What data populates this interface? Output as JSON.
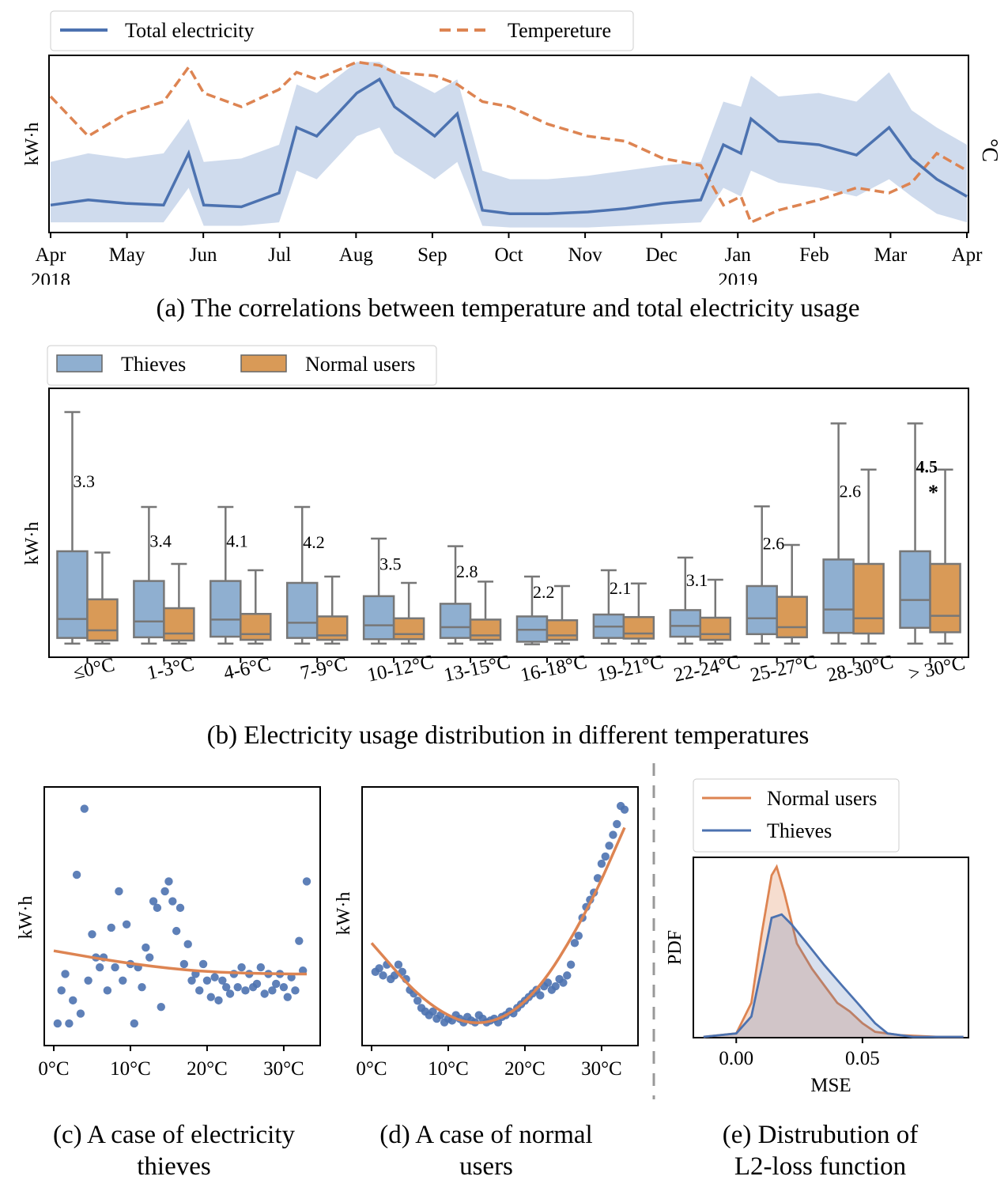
{
  "panel_a": {
    "legend": [
      "Total electricity",
      "Tempereture"
    ],
    "ylabel_left": "kW·h",
    "ylabel_right": "°C",
    "x_ticks": [
      {
        "label": "Apr",
        "sub": "2018"
      },
      {
        "label": "May",
        "sub": ""
      },
      {
        "label": "Jun",
        "sub": ""
      },
      {
        "label": "Jul",
        "sub": ""
      },
      {
        "label": "Aug",
        "sub": ""
      },
      {
        "label": "Sep",
        "sub": ""
      },
      {
        "label": "Oct",
        "sub": ""
      },
      {
        "label": "Nov",
        "sub": ""
      },
      {
        "label": "Dec",
        "sub": ""
      },
      {
        "label": "Jan",
        "sub": "2019"
      },
      {
        "label": "Feb",
        "sub": ""
      },
      {
        "label": "Mar",
        "sub": ""
      },
      {
        "label": "Apr",
        "sub": ""
      }
    ],
    "caption": "(a) The correlations between temperature and total electricity usage"
  },
  "panel_b": {
    "legend": [
      "Thieves",
      "Normal users"
    ],
    "ylabel": "kW·h",
    "caption": "(b) Electricity usage distribution in different temperatures"
  },
  "panel_c": {
    "ylabel": "kW·h",
    "x_ticks": [
      "0°C",
      "10°C",
      "20°C",
      "30°C"
    ],
    "caption_line1": "(c) A case of electricity",
    "caption_line2": "thieves"
  },
  "panel_d": {
    "ylabel": "kW·h",
    "x_ticks": [
      "0°C",
      "10°C",
      "20°C",
      "30°C"
    ],
    "caption_line1": "(d) A case of normal",
    "caption_line2": "users"
  },
  "panel_e": {
    "legend": [
      "Normal users",
      "Thieves"
    ],
    "ylabel": "PDF",
    "xlabel": "MSE",
    "x_ticks": [
      "0.00",
      "0.05"
    ],
    "caption_line1": "(e) Distrubution of",
    "caption_line2": "L2-loss function"
  },
  "chart_data": [
    {
      "type": "line",
      "x_dates": [
        "2018-04-01",
        "2018-04-16",
        "2018-05-01",
        "2018-05-16",
        "2018-05-26",
        "2018-06-01",
        "2018-06-16",
        "2018-07-01",
        "2018-07-08",
        "2018-07-16",
        "2018-08-01",
        "2018-08-10",
        "2018-08-16",
        "2018-09-01",
        "2018-09-10",
        "2018-09-20",
        "2018-10-01",
        "2018-10-16",
        "2018-11-01",
        "2018-11-16",
        "2018-12-01",
        "2018-12-16",
        "2018-12-25",
        "2019-01-01",
        "2019-01-05",
        "2019-01-16",
        "2019-02-01",
        "2019-02-16",
        "2019-03-01",
        "2019-03-10",
        "2019-03-20",
        "2019-04-01"
      ],
      "series": [
        {
          "name": "Total electricity",
          "axis": "left",
          "values": [
            0.15,
            0.18,
            0.16,
            0.15,
            0.45,
            0.15,
            0.14,
            0.22,
            0.6,
            0.55,
            0.8,
            0.88,
            0.72,
            0.55,
            0.68,
            0.12,
            0.1,
            0.1,
            0.11,
            0.13,
            0.16,
            0.18,
            0.5,
            0.45,
            0.65,
            0.52,
            0.5,
            0.44,
            0.6,
            0.42,
            0.3,
            0.2
          ],
          "band_upper": [
            0.4,
            0.45,
            0.42,
            0.45,
            0.65,
            0.4,
            0.42,
            0.5,
            0.85,
            0.8,
            0.98,
            0.98,
            0.92,
            0.8,
            0.88,
            0.35,
            0.3,
            0.3,
            0.32,
            0.35,
            0.38,
            0.4,
            0.75,
            0.72,
            0.9,
            0.78,
            0.8,
            0.75,
            0.92,
            0.7,
            0.6,
            0.5
          ],
          "band_lower": [
            0.05,
            0.05,
            0.05,
            0.05,
            0.25,
            0.03,
            0.03,
            0.05,
            0.35,
            0.3,
            0.55,
            0.6,
            0.45,
            0.3,
            0.4,
            0.03,
            0.02,
            0.02,
            0.02,
            0.03,
            0.04,
            0.05,
            0.25,
            0.2,
            0.35,
            0.28,
            0.25,
            0.2,
            0.3,
            0.2,
            0.1,
            0.05
          ]
        },
        {
          "name": "Tempereture",
          "axis": "right",
          "values": [
            0.78,
            0.55,
            0.68,
            0.75,
            0.95,
            0.8,
            0.72,
            0.82,
            0.92,
            0.88,
            0.98,
            0.96,
            0.92,
            0.9,
            0.85,
            0.75,
            0.72,
            0.62,
            0.55,
            0.52,
            0.42,
            0.38,
            0.15,
            0.2,
            0.05,
            0.12,
            0.18,
            0.25,
            0.22,
            0.28,
            0.45,
            0.35
          ]
        }
      ],
      "ylim": [
        0,
        1
      ]
    },
    {
      "type": "box",
      "categories": [
        "≤0°C",
        "1-3°C",
        "4-6°C",
        "7-9°C",
        "10-12°C",
        "13-15°C",
        "16-18°C",
        "19-21°C",
        "22-24°C",
        "25-27°C",
        "28-30°C",
        "> 30°C"
      ],
      "series": [
        {
          "name": "Thieves",
          "whislo": [
            0.04,
            0.04,
            0.04,
            0.04,
            0.04,
            0.04,
            0.03,
            0.04,
            0.04,
            0.04,
            0.04,
            0.04
          ],
          "q1": [
            0.13,
            0.14,
            0.15,
            0.13,
            0.11,
            0.13,
            0.07,
            0.13,
            0.15,
            0.19,
            0.21,
            0.29
          ],
          "med": [
            0.43,
            0.39,
            0.42,
            0.37,
            0.33,
            0.3,
            0.26,
            0.31,
            0.32,
            0.44,
            0.58,
            0.73
          ],
          "q3": [
            1.5,
            1.03,
            1.03,
            1.0,
            0.79,
            0.67,
            0.47,
            0.5,
            0.57,
            0.95,
            1.37,
            1.5
          ],
          "whishi": [
            3.7,
            2.2,
            2.2,
            2.2,
            1.7,
            1.58,
            1.1,
            1.2,
            1.4,
            2.21,
            3.52,
            3.52
          ],
          "annotation": [
            "3.3",
            "3.4",
            "4.1",
            "4.2",
            "3.5",
            "2.8",
            "2.2",
            "2.1",
            "3.1",
            "2.6",
            "2.6",
            "4.5"
          ]
        },
        {
          "name": "Normal users",
          "whislo": [
            0.04,
            0.04,
            0.04,
            0.04,
            0.04,
            0.04,
            0.04,
            0.04,
            0.04,
            0.04,
            0.04,
            0.04
          ],
          "q1": [
            0.09,
            0.09,
            0.1,
            0.1,
            0.11,
            0.1,
            0.1,
            0.12,
            0.1,
            0.14,
            0.2,
            0.22
          ],
          "med": [
            0.25,
            0.2,
            0.19,
            0.17,
            0.19,
            0.17,
            0.17,
            0.2,
            0.19,
            0.3,
            0.44,
            0.48
          ],
          "q3": [
            0.74,
            0.6,
            0.51,
            0.47,
            0.44,
            0.42,
            0.41,
            0.46,
            0.45,
            0.78,
            1.3,
            1.3
          ],
          "whishi": [
            1.48,
            1.3,
            1.2,
            1.1,
            1.0,
            1.02,
            0.95,
            0.99,
            1.05,
            1.6,
            2.79,
            2.79
          ]
        }
      ],
      "markers": [
        {
          "category": "> 30°C",
          "text": "*"
        }
      ],
      "ylim": [
        0,
        3.9
      ]
    },
    {
      "type": "scatter",
      "xlabel_ticks": [
        "0°C",
        "10°C",
        "20°C",
        "30°C"
      ],
      "x": [
        0.5,
        1,
        1.5,
        2,
        2.5,
        3,
        3.5,
        4,
        4.5,
        5,
        5.5,
        6,
        6.5,
        7,
        7.5,
        8,
        8.5,
        9,
        9.5,
        10,
        10.5,
        11,
        11.5,
        12,
        12.5,
        13,
        13.5,
        14,
        14.5,
        15,
        15.5,
        16,
        16.5,
        17,
        17.5,
        18,
        18.5,
        19,
        19.5,
        20,
        20.5,
        21,
        21.5,
        22,
        22.5,
        23,
        23.5,
        24,
        24.5,
        25,
        25.5,
        26,
        26.5,
        27,
        27.5,
        28,
        28.5,
        29,
        29.5,
        30,
        30.5,
        31,
        31.5,
        32,
        32.5,
        33
      ],
      "y": [
        0.5,
        1.5,
        2,
        0.5,
        1.2,
        5,
        0.8,
        7,
        1.8,
        3.2,
        2.5,
        2.2,
        2.5,
        1.5,
        3.4,
        2.2,
        4.5,
        1.8,
        3.5,
        2.3,
        0.5,
        2.2,
        1.6,
        2.8,
        2.5,
        4.2,
        4,
        1,
        4.5,
        4.8,
        4.2,
        3.3,
        4,
        2.3,
        2.9,
        1.8,
        2,
        1.5,
        2.3,
        1.8,
        1.3,
        1.9,
        1.2,
        1.8,
        1.6,
        1.4,
        2.0,
        1.6,
        2.2,
        1.5,
        2.0,
        1.6,
        1.7,
        2.2,
        1.4,
        2.0,
        1.5,
        1.7,
        2.0,
        1.6,
        1.3,
        1.9,
        1.5,
        3.0,
        2.1,
        4.8
      ],
      "fit": [
        {
          "x": 0,
          "y": 2.7
        },
        {
          "x": 10,
          "y": 2.3
        },
        {
          "x": 20,
          "y": 2.05
        },
        {
          "x": 30,
          "y": 2.0
        },
        {
          "x": 33,
          "y": 2.0
        }
      ]
    },
    {
      "type": "scatter",
      "xlabel_ticks": [
        "0°C",
        "10°C",
        "20°C",
        "30°C"
      ],
      "x": [
        0.5,
        1,
        1.5,
        2,
        2.5,
        3,
        3.5,
        4,
        4.5,
        5,
        5.5,
        6,
        6.5,
        7,
        7.5,
        8,
        8.5,
        9,
        9.5,
        10,
        10.5,
        11,
        11.5,
        12,
        12.5,
        13,
        13.5,
        14,
        14.5,
        15,
        15.5,
        16,
        16.5,
        17,
        17.5,
        18,
        18.5,
        19,
        19.5,
        20,
        20.5,
        21,
        21.5,
        22,
        22.5,
        23,
        23.5,
        24,
        24.5,
        25,
        25.5,
        26,
        26.5,
        27,
        27.5,
        28,
        28.5,
        29,
        29.5,
        30,
        30.5,
        31,
        31.5,
        32,
        32.5,
        33
      ],
      "y": [
        2.0,
        2.1,
        1.9,
        2.2,
        1.8,
        1.9,
        2.2,
        2.0,
        1.8,
        1.5,
        1.4,
        1.2,
        1.0,
        0.9,
        0.8,
        0.9,
        0.7,
        0.8,
        0.6,
        0.7,
        0.65,
        0.8,
        0.7,
        0.6,
        0.75,
        0.65,
        0.6,
        0.8,
        0.7,
        0.6,
        0.65,
        0.7,
        0.6,
        0.75,
        0.8,
        0.9,
        0.85,
        1.0,
        1.1,
        1.2,
        1.3,
        1.4,
        1.5,
        1.35,
        1.6,
        1.7,
        1.5,
        1.6,
        1.8,
        1.7,
        1.9,
        2.2,
        2.8,
        3.0,
        3.5,
        3.8,
        4.0,
        4.2,
        4.6,
        5.0,
        5.2,
        5.5,
        5.8,
        6.1,
        6.6,
        6.5
      ],
      "fit": [
        {
          "x": 0,
          "y": 2.8
        },
        {
          "x": 7,
          "y": 1.1
        },
        {
          "x": 14,
          "y": 0.4
        },
        {
          "x": 21,
          "y": 1.2
        },
        {
          "x": 28,
          "y": 3.6
        },
        {
          "x": 33,
          "y": 6.0
        }
      ]
    },
    {
      "type": "area",
      "x_ticks": [
        "0.00",
        "0.05"
      ],
      "series": [
        {
          "name": "Normal users",
          "x": [
            -0.013,
            0.0,
            0.006,
            0.01,
            0.014,
            0.016,
            0.019,
            0.024,
            0.03,
            0.035,
            0.04,
            0.045,
            0.05,
            0.055,
            0.065,
            0.08,
            0.09
          ],
          "y": [
            0.0,
            0.02,
            0.2,
            0.6,
            0.95,
            1.0,
            0.85,
            0.55,
            0.4,
            0.3,
            0.2,
            0.15,
            0.08,
            0.03,
            0.01,
            0.0,
            0.0
          ]
        },
        {
          "name": "Thieves",
          "x": [
            -0.013,
            0.0,
            0.006,
            0.01,
            0.014,
            0.018,
            0.022,
            0.028,
            0.035,
            0.042,
            0.048,
            0.055,
            0.06,
            0.07,
            0.08,
            0.09
          ],
          "y": [
            0.0,
            0.02,
            0.12,
            0.4,
            0.7,
            0.72,
            0.66,
            0.55,
            0.42,
            0.3,
            0.2,
            0.08,
            0.02,
            0.0,
            0.0,
            0.0
          ]
        }
      ],
      "xlabel": "MSE",
      "ylabel": "PDF"
    }
  ]
}
